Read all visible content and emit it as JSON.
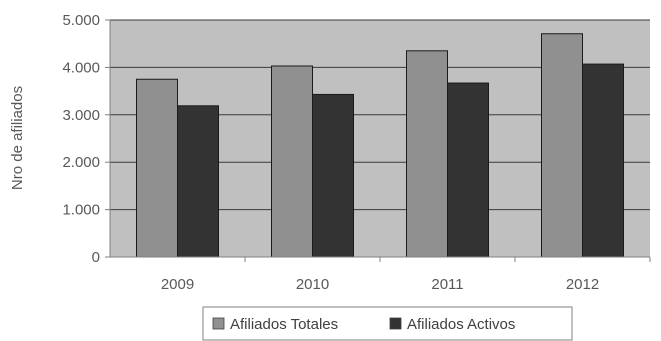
{
  "chart_data": {
    "type": "bar",
    "title": "",
    "xlabel": "",
    "ylabel": "Nro de afiliados",
    "categories": [
      "2009",
      "2010",
      "2011",
      "2012"
    ],
    "series": [
      {
        "name": "Afiliados Totales",
        "values": [
          3750,
          4030,
          4350,
          4710
        ],
        "color": "#909090"
      },
      {
        "name": "Afiliados Activos",
        "values": [
          3190,
          3430,
          3670,
          4070
        ],
        "color": "#333333"
      }
    ],
    "ylim": [
      0,
      5000
    ],
    "yticks": [
      {
        "value": 0,
        "label": "0"
      },
      {
        "value": 1000,
        "label": "1.000"
      },
      {
        "value": 2000,
        "label": "2.000"
      },
      {
        "value": 3000,
        "label": "3.000"
      },
      {
        "value": 4000,
        "label": "4.000"
      },
      {
        "value": 5000,
        "label": "5.000"
      }
    ],
    "grid": true,
    "plot_background": "#c0c0c0",
    "legend_position": "bottom"
  }
}
